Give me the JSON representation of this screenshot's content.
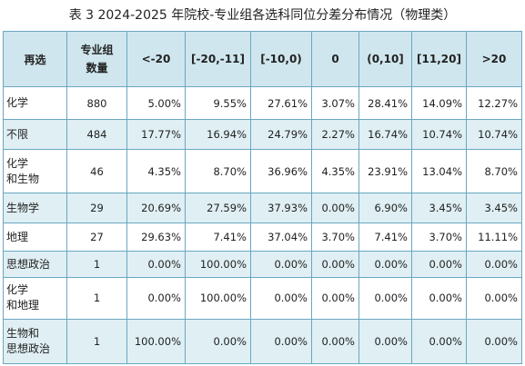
{
  "caption": "表 3 2024-2025 年院校-专业组各选科同位分差分布情况（物理类）",
  "columns": {
    "subject": "再选",
    "count_line1": "专业组",
    "count_line2": "数量",
    "bins": [
      "<-20",
      "[-20,-11]",
      "[-10,0)",
      "0",
      "(0,10]",
      "[11,20]",
      ">20"
    ]
  },
  "rows": [
    {
      "label_lines": [
        "化学"
      ],
      "count": "880",
      "values": [
        "5.00%",
        "9.55%",
        "27.61%",
        "3.07%",
        "28.41%",
        "14.09%",
        "12.27%"
      ]
    },
    {
      "label_lines": [
        "不限"
      ],
      "count": "484",
      "values": [
        "17.77%",
        "16.94%",
        "24.79%",
        "2.27%",
        "16.74%",
        "10.74%",
        "10.74%"
      ]
    },
    {
      "label_lines": [
        "化学",
        "和生物"
      ],
      "count": "46",
      "values": [
        "4.35%",
        "8.70%",
        "36.96%",
        "4.35%",
        "23.91%",
        "13.04%",
        "8.70%"
      ]
    },
    {
      "label_lines": [
        "生物学"
      ],
      "count": "29",
      "values": [
        "20.69%",
        "27.59%",
        "37.93%",
        "0.00%",
        "6.90%",
        "3.45%",
        "3.45%"
      ]
    },
    {
      "label_lines": [
        "地理"
      ],
      "count": "27",
      "values": [
        "29.63%",
        "7.41%",
        "37.04%",
        "3.70%",
        "7.41%",
        "3.70%",
        "11.11%"
      ]
    },
    {
      "label_lines": [
        "思想政治"
      ],
      "count": "1",
      "values": [
        "0.00%",
        "100.00%",
        "0.00%",
        "0.00%",
        "0.00%",
        "0.00%",
        "0.00%"
      ]
    },
    {
      "label_lines": [
        "化学",
        "和地理"
      ],
      "count": "1",
      "values": [
        "0.00%",
        "100.00%",
        "0.00%",
        "0.00%",
        "0.00%",
        "0.00%",
        "0.00%"
      ]
    },
    {
      "label_lines": [
        "生物和",
        "思想政治"
      ],
      "count": "1",
      "values": [
        "100.00%",
        "0.00%",
        "0.00%",
        "0.00%",
        "0.00%",
        "0.00%",
        "0.00%"
      ]
    }
  ]
}
